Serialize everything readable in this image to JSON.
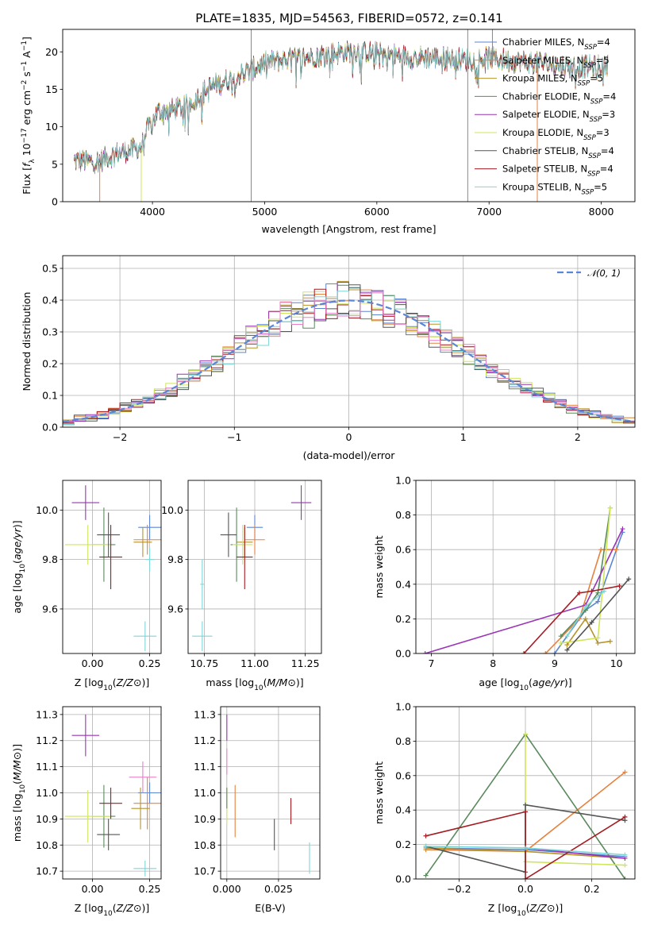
{
  "figure_title": "PLATE=1835, MJD=54563, FIBERID=0572, z=0.141",
  "series": [
    {
      "name": "Chabrier MILES, N_SSP=4",
      "base": "Chabrier MILES, N",
      "sub": "SSP",
      "tail": "=4",
      "color": "#5b86d6"
    },
    {
      "name": "Salpeter MILES, N_SSP=5",
      "base": "Salpeter MILES, N",
      "sub": "SSP",
      "tail": "=5",
      "color": "#e7823f"
    },
    {
      "name": "Kroupa MILES, N_SSP=5",
      "base": "Kroupa MILES, N",
      "sub": "SSP",
      "tail": "=5",
      "color": "#b8932a"
    },
    {
      "name": "Chabrier ELODIE, N_SSP=4",
      "base": "Chabrier ELODIE, N",
      "sub": "SSP",
      "tail": "=4",
      "color": "#5a8a5e"
    },
    {
      "name": "Salpeter ELODIE, N_SSP=3",
      "base": "Salpeter ELODIE, N",
      "sub": "SSP",
      "tail": "=3",
      "color": "#9a34b6"
    },
    {
      "name": "Kroupa ELODIE, N_SSP=3",
      "base": "Kroupa ELODIE, N",
      "sub": "SSP",
      "tail": "=3",
      "color": "#cfe65a"
    },
    {
      "name": "Chabrier STELIB, N_SSP=4",
      "base": "Chabrier STELIB, N",
      "sub": "SSP",
      "tail": "=4",
      "color": "#555555"
    },
    {
      "name": "Salpeter STELIB, N_SSP=4",
      "base": "Salpeter STELIB, N",
      "sub": "SSP",
      "tail": "=4",
      "color": "#a51c22"
    },
    {
      "name": "Kroupa STELIB, N_SSP=5",
      "base": "Kroupa STELIB, N",
      "sub": "SSP",
      "tail": "=5",
      "color": "#7fd6d6"
    }
  ],
  "chart_data": [
    {
      "type": "line",
      "panel": "spectrum",
      "xlabel": "wavelength [Angstrom, rest frame]",
      "ylabel": "Flux [f_λ 10^-17 erg cm^-2 s^-1 A^-1]",
      "xlim": [
        3200,
        8300
      ],
      "ylim": [
        0,
        23
      ],
      "xticks": [
        4000,
        5000,
        6000,
        7000,
        8000
      ],
      "yticks": [
        0,
        5,
        10,
        15,
        20
      ],
      "spectrum_nodes": [
        [
          3300,
          5.5
        ],
        [
          3500,
          5.3
        ],
        [
          3700,
          6.5
        ],
        [
          3900,
          7.2
        ],
        [
          3950,
          9.5
        ],
        [
          4050,
          12
        ],
        [
          4300,
          12.7
        ],
        [
          4500,
          15.2
        ],
        [
          4800,
          17
        ],
        [
          5000,
          18.5
        ],
        [
          5200,
          19
        ],
        [
          5500,
          19.6
        ],
        [
          5800,
          20.1
        ],
        [
          6000,
          19.8
        ],
        [
          6300,
          19.3
        ],
        [
          6600,
          19.2
        ],
        [
          6800,
          18.9
        ],
        [
          7000,
          19.2
        ],
        [
          7200,
          18.8
        ],
        [
          7500,
          18.5
        ],
        [
          7700,
          18
        ],
        [
          8000,
          18
        ]
      ],
      "spikes": [
        {
          "x": 4880,
          "top": 23,
          "bottom": 0,
          "color": "#888888"
        },
        {
          "x": 6810,
          "top": 23,
          "bottom": 0,
          "color": "#888888"
        },
        {
          "x": 7030,
          "top": 23,
          "bottom": 18,
          "color": "#888888"
        },
        {
          "x": 3530,
          "top": 5,
          "bottom": 0,
          "color": "#e7823f"
        },
        {
          "x": 3900,
          "top": 7,
          "bottom": 0,
          "color": "#cfe65a"
        },
        {
          "x": 7430,
          "top": 18,
          "bottom": 0,
          "color": "#e7823f"
        }
      ],
      "legend": "upper-right"
    },
    {
      "type": "histogram",
      "panel": "residuals",
      "xlabel": "(data-model)/error",
      "ylabel": "Normed distribution",
      "xlim": [
        -2.5,
        2.5
      ],
      "ylim": [
        0,
        0.54
      ],
      "xticks": [
        -2,
        -1,
        0,
        1,
        2
      ],
      "yticks": [
        0.0,
        0.1,
        0.2,
        0.3,
        0.4,
        0.5
      ],
      "bin_width": 0.1,
      "reference_curve": "Normal(0,1)",
      "legend_label": "𝒩(0, 1)",
      "legend": "upper-right"
    },
    {
      "type": "errorbar",
      "panel": "age-vs-Z",
      "xlabel": "Z [log10(Z/Z⊙)]",
      "ylabel": "age [log10(age/yr)]",
      "xlim": [
        -0.13,
        0.3
      ],
      "ylim": [
        9.42,
        10.12
      ],
      "xticks": [
        0.0,
        0.25
      ],
      "yticks": [
        9.6,
        9.8,
        10.0
      ],
      "points": [
        {
          "s": 0,
          "x": 0.25,
          "xerr": 0.05,
          "y": 9.93,
          "yerr": 0.05
        },
        {
          "s": 1,
          "x": 0.24,
          "xerr": 0.06,
          "y": 9.88,
          "yerr": 0.06
        },
        {
          "s": 2,
          "x": 0.22,
          "xerr": 0.04,
          "y": 9.87,
          "yerr": 0.06
        },
        {
          "s": 3,
          "x": 0.05,
          "xerr": 0.05,
          "y": 9.86,
          "yerr": 0.15
        },
        {
          "s": 4,
          "x": -0.03,
          "xerr": 0.06,
          "y": 10.03,
          "yerr": 0.07
        },
        {
          "s": 5,
          "x": -0.02,
          "xerr": 0.1,
          "y": 9.86,
          "yerr": 0.08
        },
        {
          "s": 6,
          "x": 0.07,
          "xerr": 0.05,
          "y": 9.9,
          "yerr": 0.09
        },
        {
          "s": 7,
          "x": 0.08,
          "xerr": 0.05,
          "y": 9.81,
          "yerr": 0.13
        },
        {
          "s": 8,
          "x": 0.23,
          "xerr": 0.05,
          "y": 9.49,
          "yerr": 0.06
        },
        {
          "s": 8,
          "x": 0.25,
          "xerr": 0.02,
          "y": 9.8,
          "yerr": 0.05
        }
      ]
    },
    {
      "type": "errorbar",
      "panel": "age-vs-mass",
      "xlabel": "mass [log10(M/M⊙)]",
      "ylabel": "",
      "xlim": [
        10.67,
        11.33
      ],
      "ylim": [
        9.42,
        10.12
      ],
      "xticks": [
        10.75,
        11.0,
        11.25
      ],
      "yticks": [
        9.6,
        9.8,
        10.0
      ],
      "points": [
        {
          "s": 0,
          "x": 11.0,
          "xerr": 0.04,
          "y": 9.93,
          "yerr": 0.05
        },
        {
          "s": 1,
          "x": 11.0,
          "xerr": 0.05,
          "y": 9.88,
          "yerr": 0.06
        },
        {
          "s": 2,
          "x": 10.95,
          "xerr": 0.04,
          "y": 9.87,
          "yerr": 0.06
        },
        {
          "s": 3,
          "x": 10.91,
          "xerr": 0.03,
          "y": 9.86,
          "yerr": 0.15
        },
        {
          "s": 4,
          "x": 11.23,
          "xerr": 0.05,
          "y": 10.03,
          "yerr": 0.07
        },
        {
          "s": 5,
          "x": 10.94,
          "xerr": 0.05,
          "y": 9.86,
          "yerr": 0.08
        },
        {
          "s": 6,
          "x": 10.87,
          "xerr": 0.04,
          "y": 9.9,
          "yerr": 0.09
        },
        {
          "s": 7,
          "x": 10.95,
          "xerr": 0.04,
          "y": 9.81,
          "yerr": 0.13
        },
        {
          "s": 8,
          "x": 10.74,
          "xerr": 0.05,
          "y": 9.49,
          "yerr": 0.06
        },
        {
          "s": 8,
          "x": 10.74,
          "xerr": 0.01,
          "y": 9.7,
          "yerr": 0.1
        }
      ]
    },
    {
      "type": "line",
      "panel": "weight-vs-age",
      "xlabel": "age [log10(age/yr)]",
      "ylabel": "mass weight",
      "xlim": [
        6.75,
        10.3
      ],
      "ylim": [
        0,
        1.0
      ],
      "xticks": [
        7,
        8,
        9,
        10
      ],
      "yticks": [
        0.0,
        0.2,
        0.4,
        0.6,
        0.8,
        1.0
      ],
      "series_points": [
        {
          "s": 0,
          "pts": [
            [
              9.0,
              0.0
            ],
            [
              9.5,
              0.25
            ],
            [
              9.7,
              0.3
            ],
            [
              10.1,
              0.7
            ]
          ]
        },
        {
          "s": 1,
          "pts": [
            [
              8.85,
              0.0
            ],
            [
              9.4,
              0.2
            ],
            [
              9.75,
              0.6
            ],
            [
              10.0,
              0.6
            ]
          ]
        },
        {
          "s": 2,
          "pts": [
            [
              9.2,
              0.05
            ],
            [
              9.5,
              0.2
            ],
            [
              9.7,
              0.06
            ],
            [
              9.9,
              0.07
            ]
          ]
        },
        {
          "s": 3,
          "pts": [
            [
              9.1,
              0.1
            ],
            [
              9.5,
              0.25
            ],
            [
              9.7,
              0.35
            ],
            [
              9.9,
              0.84
            ]
          ]
        },
        {
          "s": 4,
          "pts": [
            [
              6.9,
              0.0
            ],
            [
              9.5,
              0.28
            ],
            [
              10.1,
              0.72
            ]
          ]
        },
        {
          "s": 5,
          "pts": [
            [
              9.1,
              0.06
            ],
            [
              9.7,
              0.09
            ],
            [
              9.9,
              0.84
            ]
          ]
        },
        {
          "s": 6,
          "pts": [
            [
              9.2,
              0.02
            ],
            [
              9.6,
              0.18
            ],
            [
              10.2,
              0.43
            ]
          ]
        },
        {
          "s": 7,
          "pts": [
            [
              8.5,
              0.0
            ],
            [
              9.4,
              0.35
            ],
            [
              9.6,
              0.36
            ],
            [
              10.05,
              0.39
            ]
          ]
        },
        {
          "s": 8,
          "pts": [
            [
              9.2,
              0.1
            ],
            [
              9.5,
              0.27
            ],
            [
              9.8,
              0.36
            ]
          ]
        }
      ]
    },
    {
      "type": "errorbar",
      "panel": "mass-vs-Z",
      "xlabel": "Z [log10(Z/Z⊙)]",
      "ylabel": "mass [log10(M/M⊙)]",
      "xlim": [
        -0.13,
        0.3
      ],
      "ylim": [
        10.67,
        11.33
      ],
      "xticks": [
        0.0,
        0.25
      ],
      "yticks": [
        10.7,
        10.8,
        10.9,
        11.0,
        11.1,
        11.2,
        11.3
      ],
      "points": [
        {
          "s": 0,
          "x": 0.25,
          "xerr": 0.05,
          "y": 11.0,
          "yerr": 0.04
        },
        {
          "s": 1,
          "x": 0.24,
          "xerr": 0.06,
          "y": 10.96,
          "yerr": 0.1
        },
        {
          "s": 2,
          "x": 0.21,
          "xerr": 0.04,
          "y": 10.94,
          "yerr": 0.08
        },
        {
          "s": 3,
          "x": 0.05,
          "xerr": 0.05,
          "y": 10.91,
          "yerr": 0.12
        },
        {
          "s": 4,
          "x": -0.03,
          "xerr": 0.06,
          "y": 11.22,
          "yerr": 0.08
        },
        {
          "s": 5,
          "x": -0.02,
          "xerr": 0.1,
          "y": 10.91,
          "yerr": 0.1
        },
        {
          "s": 6,
          "x": 0.07,
          "xerr": 0.05,
          "y": 10.84,
          "yerr": 0.06
        },
        {
          "s": 7,
          "x": 0.08,
          "xerr": 0.05,
          "y": 10.96,
          "yerr": 0.06
        },
        {
          "s": 8,
          "x": 0.23,
          "xerr": 0.05,
          "y": 10.71,
          "yerr": 0.03
        },
        {
          "s": 9,
          "x": 0.22,
          "xerr": 0.06,
          "y": 11.06,
          "yerr": 0.06
        }
      ]
    },
    {
      "type": "errorbar",
      "panel": "mass-vs-EBV",
      "xlabel": "E(B-V)",
      "ylabel": "",
      "xlim": [
        -0.003,
        0.045
      ],
      "ylim": [
        10.67,
        11.33
      ],
      "xticks": [
        0.0,
        0.025
      ],
      "yticks": [
        10.7,
        10.8,
        10.9,
        11.0,
        11.1,
        11.2,
        11.3
      ],
      "points": [
        {
          "s": 4,
          "x": 0.0,
          "y": 11.25,
          "yerr": 0.05
        },
        {
          "s": 9,
          "x": 0.0,
          "y": 11.12,
          "yerr": 0.05
        },
        {
          "s": 5,
          "x": 0.0,
          "y": 10.95,
          "yerr": 0.07
        },
        {
          "s": 3,
          "x": 0.0,
          "y": 10.98,
          "yerr": 0.04
        },
        {
          "s": 1,
          "x": 0.004,
          "y": 10.93,
          "yerr": 0.1
        },
        {
          "s": 6,
          "x": 0.023,
          "y": 10.84,
          "yerr": 0.06
        },
        {
          "s": 7,
          "x": 0.031,
          "y": 10.93,
          "yerr": 0.05
        },
        {
          "s": 8,
          "x": 0.04,
          "y": 10.75,
          "yerr": 0.06
        }
      ]
    },
    {
      "type": "line",
      "panel": "weight-vs-Z",
      "xlabel": "Z [log10(Z/Z⊙)]",
      "ylabel": "mass weight",
      "xlim": [
        -0.33,
        0.33
      ],
      "ylim": [
        0,
        1.0
      ],
      "xticks": [
        -0.2,
        0.0,
        0.2
      ],
      "yticks": [
        0.0,
        0.2,
        0.4,
        0.6,
        0.8,
        1.0
      ],
      "series_points": [
        {
          "s": 0,
          "pts": [
            [
              -0.3,
              0.18
            ],
            [
              0.0,
              0.17
            ],
            [
              0.3,
              0.13
            ]
          ]
        },
        {
          "s": 1,
          "pts": [
            [
              -0.3,
              0.17
            ],
            [
              0.0,
              0.16
            ],
            [
              0.3,
              0.62
            ]
          ]
        },
        {
          "s": 2,
          "pts": [
            [
              -0.3,
              0.18
            ],
            [
              0.0,
              0.16
            ],
            [
              0.3,
              0.12
            ]
          ]
        },
        {
          "s": 3,
          "pts": [
            [
              -0.3,
              0.02
            ],
            [
              0.0,
              0.84
            ],
            [
              0.3,
              0.0
            ]
          ]
        },
        {
          "s": 4,
          "pts": [
            [
              0.0,
              0.18
            ],
            [
              0.3,
              0.12
            ]
          ]
        },
        {
          "s": 5,
          "pts": [
            [
              0.0,
              0.84
            ],
            [
              0.0,
              0.1
            ],
            [
              0.3,
              0.08
            ]
          ]
        },
        {
          "s": 6,
          "pts": [
            [
              -0.3,
              0.19
            ],
            [
              0.0,
              0.04
            ],
            [
              0.0,
              0.43
            ],
            [
              0.3,
              0.34
            ]
          ]
        },
        {
          "s": 7,
          "pts": [
            [
              -0.3,
              0.25
            ],
            [
              0.0,
              0.39
            ],
            [
              0.0,
              0.0
            ],
            [
              0.3,
              0.36
            ]
          ]
        },
        {
          "s": 8,
          "pts": [
            [
              -0.3,
              0.19
            ],
            [
              0.0,
              0.18
            ],
            [
              0.3,
              0.14
            ]
          ]
        }
      ]
    }
  ]
}
